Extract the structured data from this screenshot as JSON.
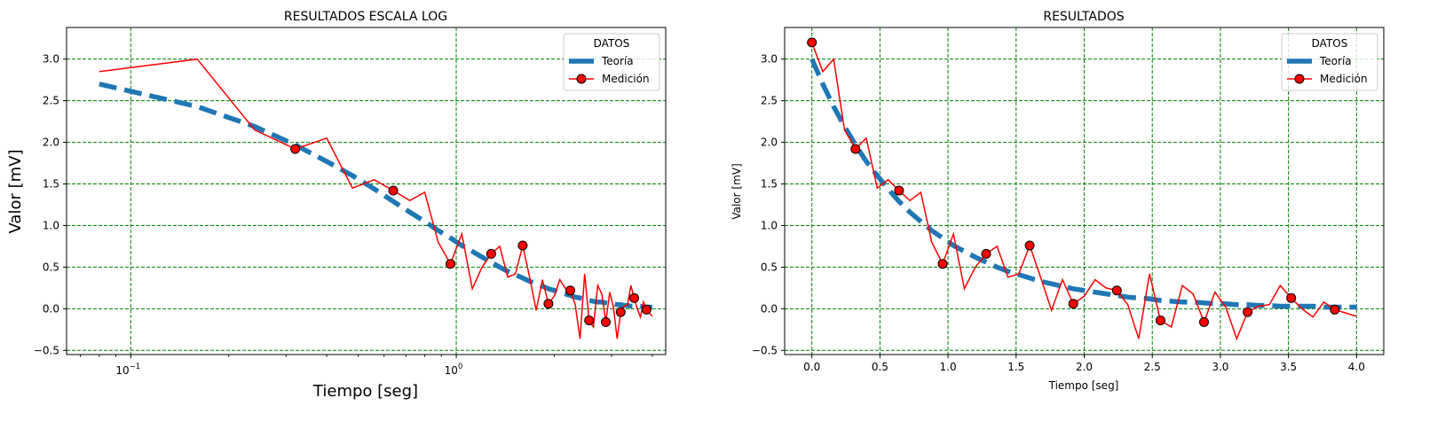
{
  "chart_data": [
    {
      "type": "line",
      "title": "RESULTADOS ESCALA LOG",
      "xlabel": "Tiempo [seg]",
      "ylabel": "Valor [mV]",
      "xscale": "log",
      "xlim": [
        0.0635,
        4.4
      ],
      "ylim": [
        -0.55,
        3.38
      ],
      "xticks": [
        {
          "value": 0.1,
          "base": "10",
          "exp": "−1"
        },
        {
          "value": 1.0,
          "base": "10",
          "exp": "0"
        }
      ],
      "yticks": [
        -0.5,
        0.0,
        0.5,
        1.0,
        1.5,
        2.0,
        2.5,
        3.0
      ],
      "grid": true,
      "grid_color": "#008000",
      "legend": {
        "title": "DATOS",
        "position": "top-right"
      }
    },
    {
      "type": "line",
      "title": "RESULTADOS",
      "xlabel": "Tiempo [seg]",
      "ylabel": "Valor [mV]",
      "xscale": "linear",
      "xlim": [
        -0.2,
        4.2
      ],
      "ylim": [
        -0.55,
        3.38
      ],
      "xticks": [
        0.0,
        0.5,
        1.0,
        1.5,
        2.0,
        2.5,
        3.0,
        3.5,
        4.0
      ],
      "yticks": [
        -0.5,
        0.0,
        0.5,
        1.0,
        1.5,
        2.0,
        2.5,
        3.0
      ],
      "grid": true,
      "grid_color": "#008000",
      "legend": {
        "title": "DATOS",
        "position": "top-right"
      }
    }
  ],
  "series": {
    "theory": {
      "name": "Teoría",
      "color": "#1f77b4",
      "style": "dashed",
      "x": [
        0.0,
        0.08,
        0.16,
        0.24,
        0.32,
        0.4,
        0.48,
        0.56,
        0.64,
        0.72,
        0.8,
        0.88,
        0.96,
        1.04,
        1.12,
        1.2,
        1.28,
        1.36,
        1.44,
        1.52,
        1.6,
        1.68,
        1.76,
        1.84,
        1.92,
        2.0,
        2.08,
        2.16,
        2.24,
        2.32,
        2.4,
        2.48,
        2.56,
        2.64,
        2.72,
        2.8,
        2.88,
        2.96,
        3.04,
        3.12,
        3.2,
        3.28,
        3.36,
        3.44,
        3.52,
        3.6,
        3.68,
        3.76,
        3.84,
        3.92,
        4.0
      ],
      "y": [
        3.0,
        2.7,
        2.43,
        2.19,
        1.97,
        1.77,
        1.6,
        1.44,
        1.29,
        1.16,
        1.05,
        0.94,
        0.85,
        0.76,
        0.69,
        0.62,
        0.56,
        0.5,
        0.45,
        0.41,
        0.37,
        0.33,
        0.3,
        0.27,
        0.24,
        0.22,
        0.2,
        0.18,
        0.16,
        0.14,
        0.13,
        0.12,
        0.1,
        0.09,
        0.08,
        0.08,
        0.07,
        0.06,
        0.06,
        0.05,
        0.05,
        0.04,
        0.04,
        0.03,
        0.03,
        0.03,
        0.03,
        0.02,
        0.02,
        0.02,
        0.02
      ]
    },
    "measurement": {
      "name": "Medición",
      "color": "#ff0000",
      "marker_color": "#ff0000",
      "x": [
        0.0,
        0.08,
        0.16,
        0.24,
        0.32,
        0.4,
        0.48,
        0.56,
        0.64,
        0.72,
        0.8,
        0.88,
        0.96,
        1.04,
        1.12,
        1.2,
        1.28,
        1.36,
        1.44,
        1.52,
        1.6,
        1.68,
        1.76,
        1.84,
        1.92,
        2.0,
        2.08,
        2.16,
        2.24,
        2.32,
        2.4,
        2.48,
        2.56,
        2.64,
        2.72,
        2.8,
        2.88,
        2.96,
        3.04,
        3.12,
        3.2,
        3.28,
        3.36,
        3.44,
        3.52,
        3.6,
        3.68,
        3.76,
        3.84,
        3.92,
        4.0
      ],
      "y": [
        3.2,
        2.85,
        3.0,
        2.15,
        1.92,
        2.05,
        1.45,
        1.55,
        1.42,
        1.3,
        1.4,
        0.8,
        0.54,
        0.9,
        0.24,
        0.5,
        0.66,
        0.75,
        0.38,
        0.42,
        0.76,
        0.38,
        -0.02,
        0.35,
        0.06,
        0.15,
        0.35,
        0.25,
        0.22,
        0.05,
        -0.36,
        0.42,
        -0.14,
        -0.22,
        0.28,
        0.18,
        -0.16,
        0.2,
        0.02,
        -0.36,
        -0.04,
        0.03,
        0.05,
        0.28,
        0.13,
        0.0,
        -0.1,
        0.08,
        -0.01,
        -0.05,
        -0.09
      ],
      "marker_every": 4
    }
  }
}
